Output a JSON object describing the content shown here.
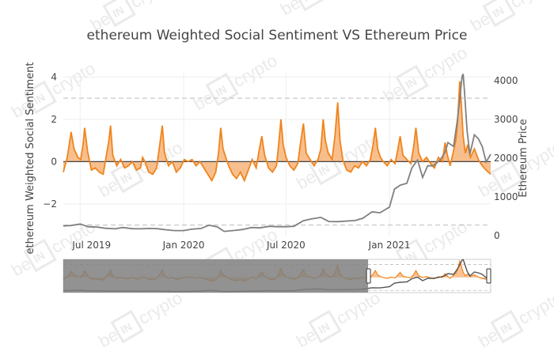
{
  "watermark": {
    "left": "be",
    "mark": "IN",
    "right": "crypto",
    "color": "#d6d6d6"
  },
  "chart_data": {
    "type": "area",
    "title": "ethereum Weighted Social Sentiment VS Ethereum Price",
    "xlabel": "",
    "ylabel": "ethereum Weighted Social Sentiment",
    "y2label": "Ethereum Price",
    "x_range": [
      "2019-06-01",
      "2021-06-30"
    ],
    "ylim": [
      -3.5,
      4.2
    ],
    "y2lim": [
      0,
      4200
    ],
    "x_ticks": [
      {
        "date": "2019-07-01",
        "label": "Jul 2019"
      },
      {
        "date": "2020-01-01",
        "label": "Jan 2020"
      },
      {
        "date": "2020-07-01",
        "label": "Jul 2020"
      },
      {
        "date": "2021-01-01",
        "label": "Jan 2021"
      }
    ],
    "y_ticks": [
      {
        "value": -2,
        "label": "−2"
      },
      {
        "value": 0,
        "label": "0"
      },
      {
        "value": 2,
        "label": "2"
      },
      {
        "value": 4,
        "label": "4"
      }
    ],
    "y2_ticks": [
      {
        "value": 0,
        "label": "0"
      },
      {
        "value": 1000,
        "label": "1000"
      },
      {
        "value": 2000,
        "label": "2000"
      },
      {
        "value": 3000,
        "label": "3000"
      },
      {
        "value": 4000,
        "label": "4000"
      }
    ],
    "reference_lines_sentiment": [
      3,
      -3
    ],
    "grid": true,
    "legend": "none",
    "range_slider": {
      "visible": true,
      "selected": [
        "2020-11-24",
        "2021-06-30"
      ]
    },
    "colors": {
      "sentiment": "#f0841c",
      "sentiment_fill": "#f7b47a",
      "price": "#808080",
      "reference": "#bdbdbd",
      "grid": "#eeeeee",
      "zero": "#444444",
      "text": "#444444"
    },
    "series": [
      {
        "axis": "y",
        "kind": "area",
        "points": [
          [
            "2019-06-01",
            -0.5
          ],
          [
            "2019-06-08",
            0.2
          ],
          [
            "2019-06-15",
            1.4
          ],
          [
            "2019-06-20",
            0.6
          ],
          [
            "2019-06-27",
            0.2
          ],
          [
            "2019-07-02",
            0.1
          ],
          [
            "2019-07-06",
            0.8
          ],
          [
            "2019-07-09",
            1.6
          ],
          [
            "2019-07-14",
            0.5
          ],
          [
            "2019-07-21",
            -0.4
          ],
          [
            "2019-07-28",
            -0.3
          ],
          [
            "2019-08-04",
            -0.5
          ],
          [
            "2019-08-11",
            -0.6
          ],
          [
            "2019-08-16",
            0.2
          ],
          [
            "2019-08-21",
            1.0
          ],
          [
            "2019-08-24",
            1.7
          ],
          [
            "2019-08-28",
            0.3
          ],
          [
            "2019-09-04",
            -0.2
          ],
          [
            "2019-09-11",
            0.1
          ],
          [
            "2019-09-18",
            -0.3
          ],
          [
            "2019-09-25",
            -0.2
          ],
          [
            "2019-10-02",
            0.0
          ],
          [
            "2019-10-09",
            -0.4
          ],
          [
            "2019-10-16",
            -0.3
          ],
          [
            "2019-10-20",
            0.2
          ],
          [
            "2019-10-24",
            0.0
          ],
          [
            "2019-10-31",
            -0.5
          ],
          [
            "2019-11-07",
            -0.6
          ],
          [
            "2019-11-14",
            -0.3
          ],
          [
            "2019-11-19",
            0.7
          ],
          [
            "2019-11-24",
            1.7
          ],
          [
            "2019-11-28",
            0.4
          ],
          [
            "2019-12-05",
            -0.2
          ],
          [
            "2019-12-12",
            0.0
          ],
          [
            "2019-12-19",
            -0.5
          ],
          [
            "2019-12-26",
            -0.3
          ],
          [
            "2020-01-02",
            0.1
          ],
          [
            "2020-01-09",
            0.0
          ],
          [
            "2020-01-16",
            0.1
          ],
          [
            "2020-01-23",
            -0.2
          ],
          [
            "2020-01-30",
            0.0
          ],
          [
            "2020-02-06",
            -0.3
          ],
          [
            "2020-02-13",
            -0.6
          ],
          [
            "2020-02-20",
            -0.9
          ],
          [
            "2020-02-27",
            -0.5
          ],
          [
            "2020-03-03",
            0.4
          ],
          [
            "2020-03-07",
            1.6
          ],
          [
            "2020-03-11",
            0.6
          ],
          [
            "2020-03-16",
            0.2
          ],
          [
            "2020-03-21",
            -0.2
          ],
          [
            "2020-03-28",
            -0.6
          ],
          [
            "2020-04-04",
            -0.8
          ],
          [
            "2020-04-11",
            -0.5
          ],
          [
            "2020-04-18",
            -0.9
          ],
          [
            "2020-04-25",
            -0.4
          ],
          [
            "2020-05-02",
            0.1
          ],
          [
            "2020-05-09",
            -0.3
          ],
          [
            "2020-05-14",
            0.5
          ],
          [
            "2020-05-19",
            1.2
          ],
          [
            "2020-05-24",
            0.3
          ],
          [
            "2020-05-31",
            -0.3
          ],
          [
            "2020-06-07",
            -0.5
          ],
          [
            "2020-06-14",
            -0.2
          ],
          [
            "2020-06-18",
            0.8
          ],
          [
            "2020-06-22",
            2.0
          ],
          [
            "2020-06-26",
            0.8
          ],
          [
            "2020-07-01",
            0.2
          ],
          [
            "2020-07-08",
            -0.2
          ],
          [
            "2020-07-15",
            -0.4
          ],
          [
            "2020-07-22",
            -0.1
          ],
          [
            "2020-07-27",
            0.9
          ],
          [
            "2020-08-01",
            1.8
          ],
          [
            "2020-08-06",
            0.4
          ],
          [
            "2020-08-13",
            0.1
          ],
          [
            "2020-08-20",
            -0.2
          ],
          [
            "2020-08-27",
            0.1
          ],
          [
            "2020-09-01",
            0.6
          ],
          [
            "2020-09-05",
            2.0
          ],
          [
            "2020-09-09",
            1.0
          ],
          [
            "2020-09-14",
            0.4
          ],
          [
            "2020-09-21",
            0.1
          ],
          [
            "2020-09-26",
            1.2
          ],
          [
            "2020-10-01",
            2.8
          ],
          [
            "2020-10-05",
            1.0
          ],
          [
            "2020-10-10",
            0.1
          ],
          [
            "2020-10-17",
            -0.4
          ],
          [
            "2020-10-24",
            -0.5
          ],
          [
            "2020-10-31",
            -0.2
          ],
          [
            "2020-11-07",
            -0.3
          ],
          [
            "2020-11-14",
            0.0
          ],
          [
            "2020-11-21",
            -0.2
          ],
          [
            "2020-11-28",
            0.1
          ],
          [
            "2020-12-03",
            0.8
          ],
          [
            "2020-12-07",
            1.6
          ],
          [
            "2020-12-11",
            0.6
          ],
          [
            "2020-12-16",
            0.2
          ],
          [
            "2020-12-21",
            0.0
          ],
          [
            "2020-12-28",
            -0.2
          ],
          [
            "2021-01-04",
            0.1
          ],
          [
            "2021-01-11",
            -0.1
          ],
          [
            "2021-01-16",
            0.6
          ],
          [
            "2021-01-20",
            1.2
          ],
          [
            "2021-01-25",
            0.3
          ],
          [
            "2021-02-01",
            0.1
          ],
          [
            "2021-02-08",
            -0.1
          ],
          [
            "2021-02-13",
            0.7
          ],
          [
            "2021-02-17",
            1.6
          ],
          [
            "2021-02-22",
            0.4
          ],
          [
            "2021-03-01",
            0.0
          ],
          [
            "2021-03-08",
            0.2
          ],
          [
            "2021-03-15",
            -0.1
          ],
          [
            "2021-03-22",
            -0.3
          ],
          [
            "2021-03-29",
            0.2
          ],
          [
            "2021-04-05",
            0.0
          ],
          [
            "2021-04-10",
            0.9
          ],
          [
            "2021-04-14",
            0.3
          ],
          [
            "2021-04-19",
            -0.2
          ],
          [
            "2021-04-24",
            0.4
          ],
          [
            "2021-04-29",
            1.0
          ],
          [
            "2021-05-02",
            1.8
          ],
          [
            "2021-05-06",
            3.8
          ],
          [
            "2021-05-09",
            2.6
          ],
          [
            "2021-05-12",
            1.2
          ],
          [
            "2021-05-16",
            0.4
          ],
          [
            "2021-05-20",
            0.8
          ],
          [
            "2021-05-25",
            0.2
          ],
          [
            "2021-06-01",
            0.6
          ],
          [
            "2021-06-08",
            0.1
          ],
          [
            "2021-06-15",
            -0.2
          ],
          [
            "2021-06-22",
            -0.4
          ],
          [
            "2021-06-30",
            -0.6
          ]
        ]
      },
      {
        "axis": "y2",
        "kind": "line",
        "points": [
          [
            "2019-06-01",
            250
          ],
          [
            "2019-06-15",
            260
          ],
          [
            "2019-07-01",
            300
          ],
          [
            "2019-07-15",
            230
          ],
          [
            "2019-08-01",
            220
          ],
          [
            "2019-08-15",
            190
          ],
          [
            "2019-09-01",
            175
          ],
          [
            "2019-09-15",
            210
          ],
          [
            "2019-10-01",
            180
          ],
          [
            "2019-10-15",
            175
          ],
          [
            "2019-11-01",
            185
          ],
          [
            "2019-11-15",
            180
          ],
          [
            "2019-12-01",
            150
          ],
          [
            "2019-12-15",
            130
          ],
          [
            "2020-01-01",
            130
          ],
          [
            "2020-01-15",
            165
          ],
          [
            "2020-02-01",
            185
          ],
          [
            "2020-02-15",
            270
          ],
          [
            "2020-03-01",
            225
          ],
          [
            "2020-03-13",
            110
          ],
          [
            "2020-04-01",
            135
          ],
          [
            "2020-04-15",
            160
          ],
          [
            "2020-05-01",
            210
          ],
          [
            "2020-05-15",
            200
          ],
          [
            "2020-06-01",
            240
          ],
          [
            "2020-06-15",
            230
          ],
          [
            "2020-07-01",
            230
          ],
          [
            "2020-07-15",
            240
          ],
          [
            "2020-08-01",
            385
          ],
          [
            "2020-08-15",
            430
          ],
          [
            "2020-09-01",
            470
          ],
          [
            "2020-09-15",
            365
          ],
          [
            "2020-10-01",
            360
          ],
          [
            "2020-10-15",
            375
          ],
          [
            "2020-11-01",
            390
          ],
          [
            "2020-11-15",
            450
          ],
          [
            "2020-12-01",
            615
          ],
          [
            "2020-12-15",
            590
          ],
          [
            "2021-01-01",
            735
          ],
          [
            "2021-01-10",
            1200
          ],
          [
            "2021-01-20",
            1300
          ],
          [
            "2021-02-01",
            1350
          ],
          [
            "2021-02-10",
            1750
          ],
          [
            "2021-02-20",
            1950
          ],
          [
            "2021-03-01",
            1500
          ],
          [
            "2021-03-10",
            1800
          ],
          [
            "2021-03-20",
            1800
          ],
          [
            "2021-04-01",
            1950
          ],
          [
            "2021-04-10",
            2150
          ],
          [
            "2021-04-15",
            2400
          ],
          [
            "2021-04-25",
            2300
          ],
          [
            "2021-05-01",
            2900
          ],
          [
            "2021-05-06",
            3500
          ],
          [
            "2021-05-10",
            4100
          ],
          [
            "2021-05-12",
            4170
          ],
          [
            "2021-05-14",
            3800
          ],
          [
            "2021-05-19",
            2700
          ],
          [
            "2021-05-24",
            2100
          ],
          [
            "2021-06-01",
            2600
          ],
          [
            "2021-06-08",
            2500
          ],
          [
            "2021-06-15",
            2300
          ],
          [
            "2021-06-22",
            1900
          ],
          [
            "2021-06-30",
            2100
          ]
        ]
      }
    ]
  }
}
